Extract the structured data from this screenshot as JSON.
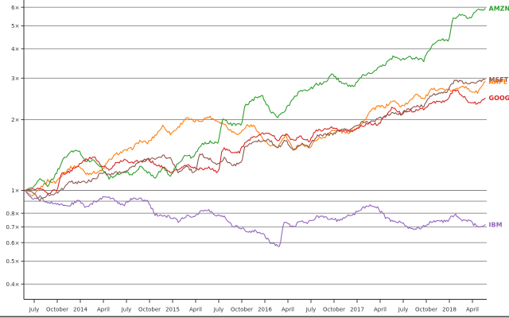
{
  "chart": {
    "background": "#ffffff",
    "grid_color": "#858585",
    "spine_color": "#2b2b2b",
    "tick_label_color": "#333333",
    "bottom_edge_color": "#4f4f4f",
    "y_ticks": [
      {
        "v": 6,
        "label": "6×"
      },
      {
        "v": 5,
        "label": "5×"
      },
      {
        "v": 4,
        "label": "4×"
      },
      {
        "v": 3,
        "label": "3×"
      },
      {
        "v": 2,
        "label": "2×"
      },
      {
        "v": 1,
        "label": "1×"
      },
      {
        "v": 0.9,
        "label": ""
      },
      {
        "v": 0.8,
        "label": "0.8×"
      },
      {
        "v": 0.7,
        "label": "0.7×"
      },
      {
        "v": 0.6,
        "label": "0.6×"
      },
      {
        "v": 0.5,
        "label": "0.5×"
      },
      {
        "v": 0.4,
        "label": "0.4×"
      }
    ],
    "x_tick_labels": [
      "July",
      "October",
      "2014",
      "April",
      "July",
      "October",
      "2015",
      "April",
      "July",
      "October",
      "2016",
      "April",
      "July",
      "October",
      "2017",
      "April",
      "July",
      "October",
      "2018",
      "April"
    ]
  },
  "chart_data": {
    "type": "line",
    "title": "",
    "y_scale": "log",
    "ylim": [
      0.37,
      6.6
    ],
    "x_start": "2013-05",
    "x_end": "2018-05",
    "x_unit": "month",
    "points_per_series": 61,
    "grid": "horizontal-only",
    "legend_position": "line-end-labels-right",
    "series": [
      {
        "name": "AAPL",
        "color": "#ff7f0e",
        "values": [
          1.0,
          0.94,
          1.02,
          1.1,
          1.08,
          1.18,
          1.25,
          1.27,
          1.18,
          1.19,
          1.21,
          1.34,
          1.43,
          1.47,
          1.51,
          1.62,
          1.59,
          1.71,
          1.88,
          1.74,
          1.85,
          2.03,
          1.97,
          1.98,
          2.06,
          1.98,
          1.92,
          1.78,
          1.74,
          1.89,
          1.87,
          1.66,
          1.54,
          1.53,
          1.72,
          1.48,
          1.58,
          1.51,
          1.65,
          1.68,
          1.79,
          1.79,
          1.75,
          1.83,
          1.92,
          2.16,
          2.27,
          2.27,
          2.41,
          2.28,
          2.35,
          2.59,
          2.44,
          2.67,
          2.71,
          2.67,
          2.65,
          2.81,
          2.65,
          2.61,
          2.9
        ]
      },
      {
        "name": "AMZN",
        "color": "#2ca02c",
        "values": [
          1.0,
          1.03,
          1.12,
          1.05,
          1.16,
          1.35,
          1.45,
          1.48,
          1.33,
          1.34,
          1.25,
          1.13,
          1.16,
          1.2,
          1.16,
          1.26,
          1.2,
          1.14,
          1.25,
          1.15,
          1.31,
          1.41,
          1.38,
          1.56,
          1.6,
          1.61,
          1.99,
          1.9,
          1.9,
          2.32,
          2.46,
          2.51,
          2.18,
          2.06,
          2.2,
          2.45,
          2.68,
          2.66,
          2.82,
          2.85,
          3.11,
          2.93,
          2.8,
          2.79,
          3.06,
          3.14,
          3.29,
          3.44,
          3.7,
          3.6,
          3.67,
          3.64,
          3.57,
          4.1,
          4.37,
          4.34,
          5.39,
          5.62,
          5.37,
          5.85,
          5.92
        ]
      },
      {
        "name": "GOOG",
        "color": "#d62728",
        "values": [
          1.0,
          1.01,
          1.02,
          0.97,
          1.0,
          1.18,
          1.21,
          1.28,
          1.35,
          1.39,
          1.28,
          1.22,
          1.31,
          1.34,
          1.32,
          1.33,
          1.35,
          1.3,
          1.25,
          1.2,
          1.22,
          1.28,
          1.25,
          1.23,
          1.25,
          1.2,
          1.5,
          1.45,
          1.46,
          1.63,
          1.7,
          1.74,
          1.74,
          1.64,
          1.74,
          1.62,
          1.7,
          1.61,
          1.81,
          1.81,
          1.84,
          1.8,
          1.77,
          1.81,
          1.88,
          1.93,
          1.9,
          2.07,
          2.26,
          2.13,
          2.17,
          2.19,
          2.23,
          2.36,
          2.37,
          2.41,
          2.71,
          2.53,
          2.37,
          2.33,
          2.47
        ]
      },
      {
        "name": "IBM",
        "color": "#9467bd",
        "values": [
          1.0,
          0.92,
          0.94,
          0.88,
          0.89,
          0.86,
          0.87,
          0.9,
          0.85,
          0.89,
          0.93,
          0.94,
          0.89,
          0.87,
          0.92,
          0.92,
          0.91,
          0.79,
          0.78,
          0.77,
          0.74,
          0.78,
          0.77,
          0.82,
          0.82,
          0.78,
          0.78,
          0.71,
          0.7,
          0.67,
          0.67,
          0.66,
          0.6,
          0.585,
          0.73,
          0.7,
          0.74,
          0.73,
          0.77,
          0.77,
          0.76,
          0.74,
          0.78,
          0.8,
          0.84,
          0.87,
          0.84,
          0.77,
          0.73,
          0.74,
          0.69,
          0.69,
          0.7,
          0.74,
          0.74,
          0.74,
          0.79,
          0.75,
          0.74,
          0.7,
          0.715
        ]
      },
      {
        "name": "MSFT",
        "color": "#8c564b",
        "values": [
          1.0,
          0.99,
          0.91,
          0.96,
          0.96,
          1.02,
          1.09,
          1.08,
          1.09,
          1.11,
          1.19,
          1.17,
          1.19,
          1.21,
          1.25,
          1.32,
          1.35,
          1.36,
          1.4,
          1.36,
          1.18,
          1.28,
          1.19,
          1.42,
          1.37,
          1.29,
          1.37,
          1.28,
          1.3,
          1.55,
          1.6,
          1.64,
          1.63,
          1.51,
          1.64,
          1.48,
          1.58,
          1.53,
          1.7,
          1.72,
          1.73,
          1.8,
          1.81,
          1.87,
          1.95,
          1.94,
          2.0,
          2.08,
          2.13,
          2.1,
          2.22,
          2.29,
          2.28,
          2.55,
          2.59,
          2.63,
          2.93,
          2.88,
          2.83,
          2.88,
          2.96
        ]
      }
    ]
  }
}
